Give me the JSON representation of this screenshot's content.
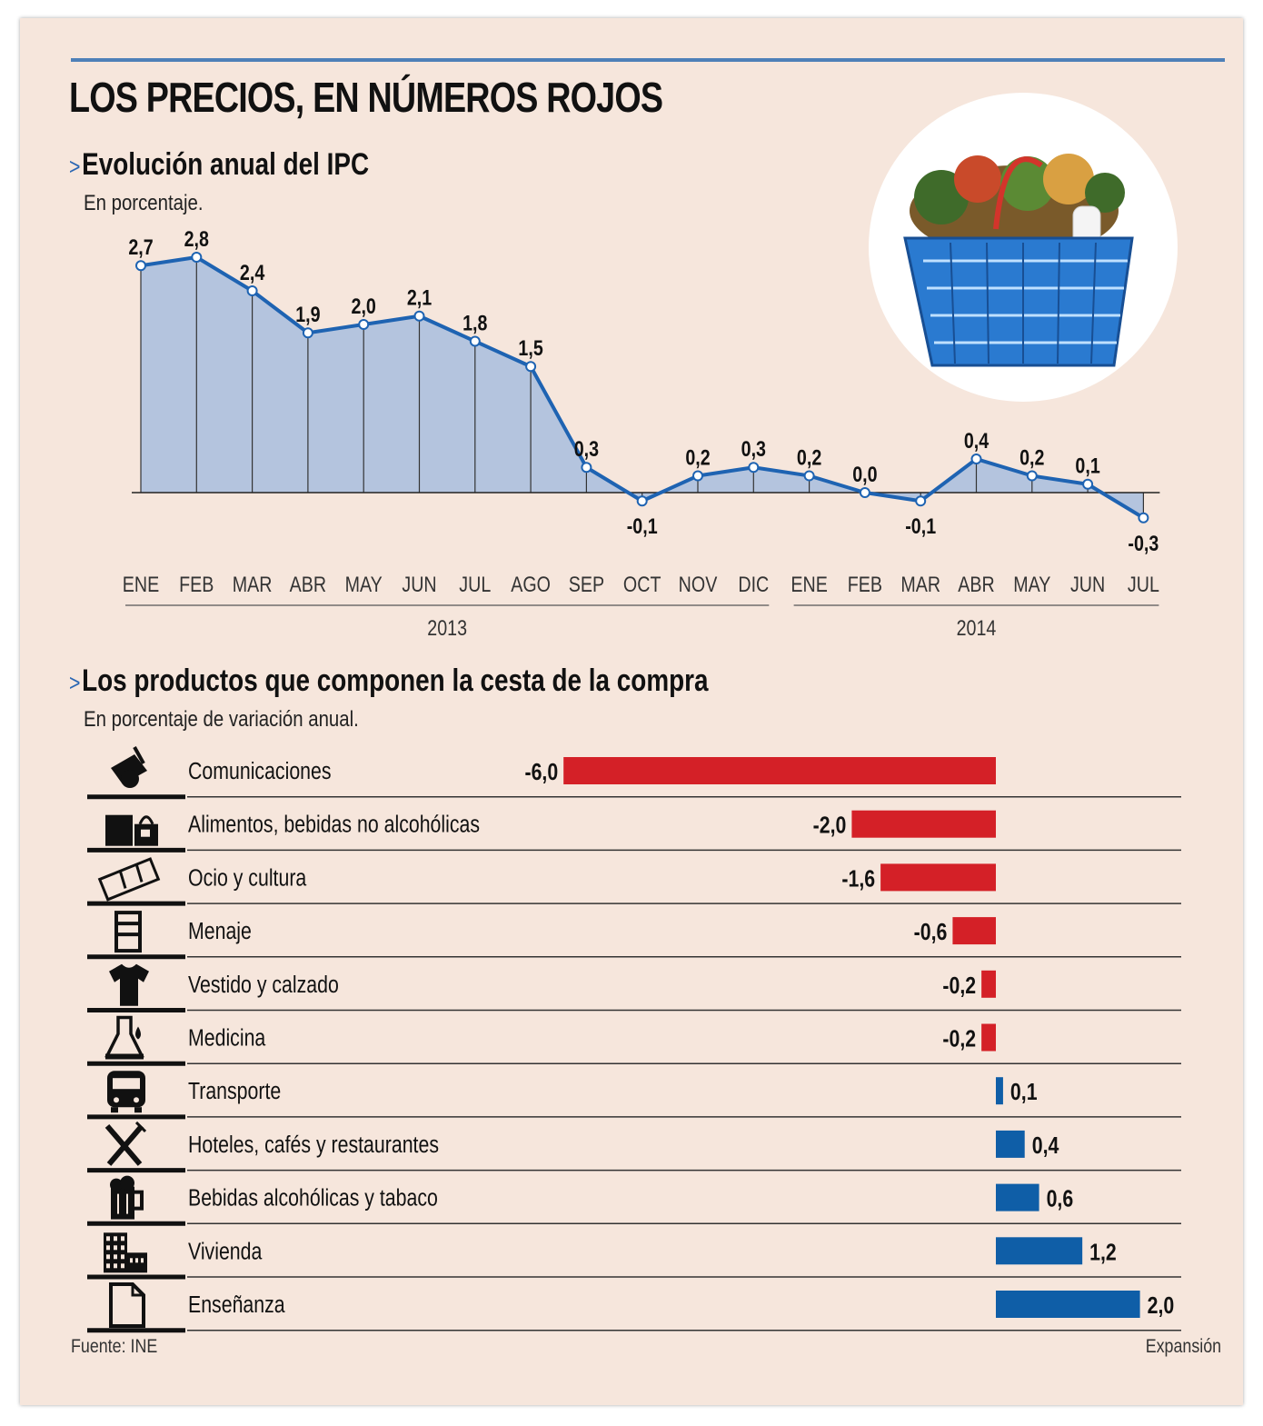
{
  "title": "LOS PRECIOS, EN NÚMEROS ROJOS",
  "section1": {
    "title": "Evolución anual del IPC",
    "subtitle": "En porcentaje."
  },
  "section2": {
    "title": "Los productos que componen la cesta de la compra",
    "subtitle": "En porcentaje de variación anual."
  },
  "source": "Fuente: INE",
  "publisher": "Expansión",
  "colors": {
    "negative": "#d42027",
    "positive": "#0f5ea7",
    "line": "#1e63b2",
    "area": "#b4c4de",
    "accent": "#4e80b8"
  },
  "chart_data": [
    {
      "type": "area",
      "title": "Evolución anual del IPC",
      "subtitle": "En porcentaje.",
      "categories": [
        "ENE",
        "FEB",
        "MAR",
        "ABR",
        "MAY",
        "JUN",
        "JUL",
        "AGO",
        "SEP",
        "OCT",
        "NOV",
        "DIC",
        "ENE",
        "FEB",
        "MAR",
        "ABR",
        "MAY",
        "JUN",
        "JUL"
      ],
      "labels": [
        "2,7",
        "2,8",
        "2,4",
        "1,9",
        "2,0",
        "2,1",
        "1,8",
        "1,5",
        "0,3",
        "-0,1",
        "0,2",
        "0,3",
        "0,2",
        "0,0",
        "-0,1",
        "0,4",
        "0,2",
        "0,1",
        "-0,3"
      ],
      "values": [
        2.7,
        2.8,
        2.4,
        1.9,
        2.0,
        2.1,
        1.8,
        1.5,
        0.3,
        -0.1,
        0.2,
        0.3,
        0.2,
        0.0,
        -0.1,
        0.4,
        0.2,
        0.1,
        -0.3
      ],
      "years": [
        {
          "label": "2013",
          "from": 0,
          "to": 11
        },
        {
          "label": "2014",
          "from": 12,
          "to": 18
        }
      ],
      "ylim": [
        -0.3,
        2.8
      ]
    },
    {
      "type": "bar",
      "orientation": "horizontal",
      "title": "Los productos que componen la cesta de la compra",
      "subtitle": "En porcentaje de variación anual.",
      "categories": [
        "Comunicaciones",
        "Alimentos, bebidas no alcohólicas",
        "Ocio y cultura",
        "Menaje",
        "Vestido y calzado",
        "Medicina",
        "Transporte",
        "Hoteles, cafés y restaurantes",
        "Bebidas alcohólicas y tabaco",
        "Vivienda",
        "Enseñanza"
      ],
      "icons": [
        "phone-icon",
        "shopping-bags-icon",
        "film-strip-icon",
        "chair-icon",
        "tshirt-icon",
        "medicine-flask-icon",
        "bus-icon",
        "fork-knife-icon",
        "beer-mug-icon",
        "buildings-icon",
        "document-icon"
      ],
      "labels": [
        "-6,0",
        "-2,0",
        "-1,6",
        "-0,6",
        "-0,2",
        "-0,2",
        "0,1",
        "0,4",
        "0,6",
        "1,2",
        "2,0"
      ],
      "values": [
        -6.0,
        -2.0,
        -1.6,
        -0.6,
        -0.2,
        -0.2,
        0.1,
        0.4,
        0.6,
        1.2,
        2.0
      ]
    }
  ]
}
